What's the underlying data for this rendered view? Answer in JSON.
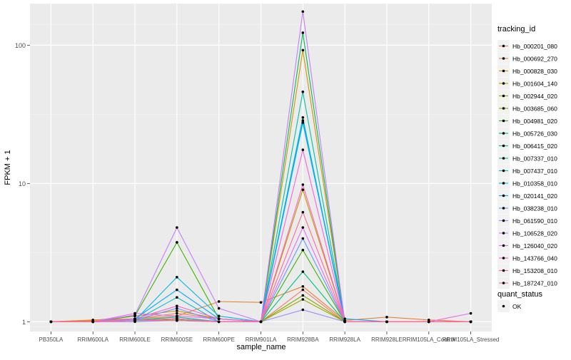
{
  "chart_data": {
    "type": "line",
    "xlabel": "sample_name",
    "ylabel": "FPKM + 1",
    "y_scale": "log10",
    "ylim": [
      0.85,
      200
    ],
    "y_ticks": [
      1,
      10,
      100
    ],
    "y_tick_labels": [
      "1",
      "10",
      "100"
    ],
    "grid": true,
    "legend_placement": "right",
    "categories": [
      "PB350LA",
      "RRIM600LA",
      "RRIM600LE",
      "RRIM600SE",
      "RRIM600PE",
      "RRIM901LA",
      "RRIM928BA",
      "RRIM928LA",
      "RRIM928LE",
      "RRIM105LA_Control",
      "RRIM105LA_Stressed"
    ],
    "legend_title": "tracking_id",
    "series": [
      {
        "name": "Hb_000201_080",
        "color": "#F8766D",
        "values": [
          1.0,
          1.01,
          1.05,
          1.15,
          1.05,
          1.0,
          1.7,
          1.0,
          1.0,
          1.0,
          1.0
        ]
      },
      {
        "name": "Hb_000692_270",
        "color": "#EA8331",
        "values": [
          1.0,
          1.03,
          1.05,
          1.1,
          1.4,
          1.38,
          1.8,
          1.02,
          1.08,
          1.03,
          1.0
        ]
      },
      {
        "name": "Hb_000828_030",
        "color": "#D89000",
        "values": [
          1.0,
          1.02,
          1.1,
          1.2,
          1.05,
          1.0,
          92.0,
          1.0,
          1.0,
          1.0,
          1.0
        ]
      },
      {
        "name": "Hb_001604_140",
        "color": "#C09B00",
        "values": [
          1.0,
          1.0,
          1.03,
          1.05,
          1.0,
          1.0,
          9.0,
          1.0,
          1.0,
          1.0,
          1.0
        ]
      },
      {
        "name": "Hb_002944_020",
        "color": "#A3A500",
        "values": [
          1.0,
          1.0,
          1.02,
          1.03,
          1.0,
          1.0,
          1.45,
          1.0,
          1.0,
          1.0,
          1.0
        ]
      },
      {
        "name": "Hb_003685_060",
        "color": "#7CAE00",
        "values": [
          1.0,
          1.0,
          1.02,
          1.05,
          1.0,
          1.0,
          1.55,
          1.0,
          1.0,
          1.0,
          1.0
        ]
      },
      {
        "name": "Hb_004981_020",
        "color": "#39B600",
        "values": [
          1.0,
          1.0,
          1.1,
          3.75,
          1.05,
          1.0,
          3.3,
          1.0,
          1.0,
          1.0,
          1.0
        ]
      },
      {
        "name": "Hb_005726_030",
        "color": "#00BB4E",
        "values": [
          1.0,
          1.0,
          1.02,
          1.02,
          1.0,
          1.0,
          123.0,
          1.0,
          1.0,
          1.0,
          1.0
        ]
      },
      {
        "name": "Hb_006415_020",
        "color": "#00BF7D",
        "values": [
          1.0,
          1.0,
          1.02,
          1.05,
          1.0,
          1.0,
          2.3,
          1.0,
          1.0,
          1.0,
          1.0
        ]
      },
      {
        "name": "Hb_007337_010",
        "color": "#00C1A3",
        "values": [
          1.0,
          1.0,
          1.03,
          1.08,
          1.0,
          1.0,
          46.0,
          1.0,
          1.0,
          1.0,
          1.0
        ]
      },
      {
        "name": "Hb_007437_010",
        "color": "#00BFC4",
        "values": [
          1.0,
          1.0,
          1.02,
          1.5,
          1.0,
          1.0,
          30.0,
          1.0,
          1.0,
          1.0,
          1.0
        ]
      },
      {
        "name": "Hb_010358_010",
        "color": "#00B8E7",
        "values": [
          1.0,
          1.0,
          1.02,
          2.1,
          1.1,
          1.0,
          28.5,
          1.0,
          1.0,
          1.0,
          1.0
        ]
      },
      {
        "name": "Hb_020141_020",
        "color": "#00A9FF",
        "values": [
          1.0,
          1.0,
          1.05,
          1.7,
          1.05,
          1.0,
          27.5,
          1.05,
          1.0,
          1.0,
          1.0
        ]
      },
      {
        "name": "Hb_038238_010",
        "color": "#619CFF",
        "values": [
          1.0,
          1.0,
          1.03,
          1.25,
          1.0,
          1.0,
          4.0,
          1.0,
          1.0,
          1.0,
          1.0
        ]
      },
      {
        "name": "Hb_061590_010",
        "color": "#9590FF",
        "values": [
          1.0,
          1.0,
          1.0,
          1.02,
          1.0,
          1.0,
          1.22,
          1.0,
          1.0,
          1.0,
          1.0
        ]
      },
      {
        "name": "Hb_106528_020",
        "color": "#C77CFF",
        "values": [
          1.0,
          1.0,
          1.12,
          4.8,
          1.25,
          1.0,
          175.0,
          1.0,
          1.0,
          1.0,
          1.0
        ]
      },
      {
        "name": "Hb_126040_020",
        "color": "#E76BF3",
        "values": [
          1.0,
          1.0,
          1.15,
          1.1,
          1.05,
          1.0,
          4.8,
          1.0,
          1.0,
          1.0,
          1.15
        ]
      },
      {
        "name": "Hb_143766_040",
        "color": "#FA62DB",
        "values": [
          1.0,
          1.0,
          1.05,
          1.3,
          1.05,
          1.0,
          17.5,
          1.0,
          1.0,
          1.0,
          1.0
        ]
      },
      {
        "name": "Hb_153208_010",
        "color": "#FF62BC",
        "values": [
          1.0,
          1.0,
          1.02,
          1.05,
          1.0,
          1.0,
          9.8,
          1.0,
          1.0,
          1.0,
          1.0
        ]
      },
      {
        "name": "Hb_187247_010",
        "color": "#FF6C91",
        "values": [
          1.0,
          1.0,
          1.02,
          1.02,
          1.0,
          1.0,
          6.2,
          1.0,
          1.0,
          1.0,
          1.0
        ]
      }
    ],
    "shape_legend": {
      "title": "quant_status",
      "entries": [
        {
          "label": "OK",
          "color": "#000000"
        }
      ]
    },
    "colors": {
      "panel_background": "#EBEBEB",
      "grid_major": "#FFFFFF",
      "point": "#000000",
      "text": "#4D4D4D"
    }
  }
}
